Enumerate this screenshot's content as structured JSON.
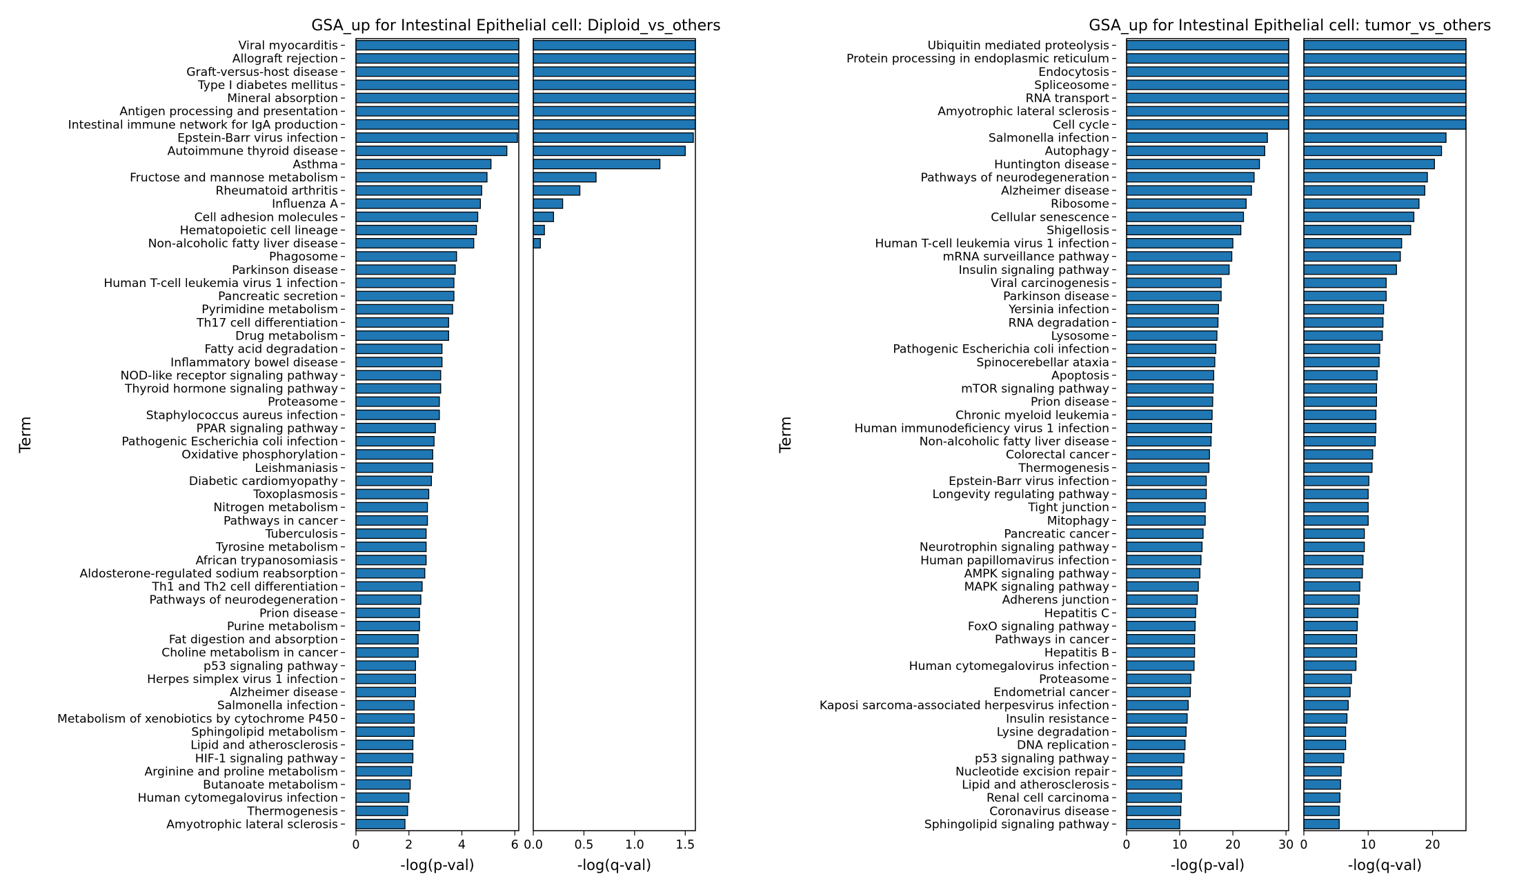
{
  "chart_data": [
    {
      "type": "bar",
      "orientation": "horizontal",
      "title": "GSA_up for Intestinal Epithelial cell: Diploid_vs_others",
      "ylabel": "Term",
      "bar_color": "#1f77b4",
      "edge_color": "#000000",
      "categories": [
        "Viral myocarditis",
        "Allograft rejection",
        "Graft-versus-host disease",
        "Type I diabetes mellitus",
        "Mineral absorption",
        "Antigen processing and presentation",
        "Intestinal immune network for IgA production",
        "Epstein-Barr virus infection",
        "Autoimmune thyroid disease",
        "Asthma",
        "Fructose and mannose metabolism",
        "Rheumatoid arthritis",
        "Influenza A",
        "Cell adhesion molecules",
        "Hematopoietic cell lineage",
        "Non-alcoholic fatty liver disease",
        "Phagosome",
        "Parkinson disease",
        "Human T-cell leukemia virus 1 infection",
        "Pancreatic secretion",
        "Pyrimidine metabolism",
        "Th17 cell differentiation",
        "Drug metabolism",
        "Fatty acid degradation",
        "Inflammatory bowel disease",
        "NOD-like receptor signaling pathway",
        "Thyroid hormone signaling pathway",
        "Proteasome",
        "Staphylococcus aureus infection",
        "PPAR signaling pathway",
        "Pathogenic Escherichia coli infection",
        "Oxidative phosphorylation",
        "Leishmaniasis",
        "Diabetic cardiomyopathy",
        "Toxoplasmosis",
        "Nitrogen metabolism",
        "Pathways in cancer",
        "Tuberculosis",
        "Tyrosine metabolism",
        "African trypanosomiasis",
        "Aldosterone-regulated sodium reabsorption",
        "Th1 and Th2 cell differentiation",
        "Pathways of neurodegeneration",
        "Prion disease",
        "Purine metabolism",
        "Fat digestion and absorption",
        "Choline metabolism in cancer",
        "p53 signaling pathway",
        "Herpes simplex virus 1 infection",
        "Alzheimer disease",
        "Salmonella infection",
        "Metabolism of xenobiotics by cytochrome P450",
        "Sphingolipid metabolism",
        "Lipid and atherosclerosis",
        "HIF-1 signaling pathway",
        "Arginine and proline metabolism",
        "Butanoate metabolism",
        "Human cytomegalovirus infection",
        "Thermogenesis",
        "Amyotrophic lateral sclerosis"
      ],
      "panels": [
        {
          "xlabel": "-log(p-val)",
          "xlim": [
            0,
            6.15
          ],
          "ticks": [
            0,
            2,
            4,
            6
          ],
          "tick_labels": [
            "0",
            "2",
            "4",
            "6"
          ],
          "values": [
            6.15,
            6.15,
            6.15,
            6.15,
            6.15,
            6.15,
            6.15,
            6.1,
            5.7,
            5.1,
            4.95,
            4.75,
            4.7,
            4.6,
            4.55,
            4.45,
            3.8,
            3.75,
            3.7,
            3.7,
            3.65,
            3.5,
            3.5,
            3.25,
            3.25,
            3.2,
            3.2,
            3.15,
            3.15,
            3.0,
            2.95,
            2.9,
            2.9,
            2.85,
            2.75,
            2.7,
            2.7,
            2.65,
            2.65,
            2.65,
            2.6,
            2.5,
            2.45,
            2.4,
            2.4,
            2.35,
            2.35,
            2.25,
            2.25,
            2.25,
            2.2,
            2.2,
            2.2,
            2.15,
            2.15,
            2.1,
            2.05,
            2.0,
            1.95,
            1.85
          ]
        },
        {
          "xlabel": "-log(q-val)",
          "xlim": [
            0,
            1.6
          ],
          "ticks": [
            0,
            0.5,
            1.0,
            1.5
          ],
          "tick_labels": [
            "0.0",
            "0.5",
            "1.0",
            "1.5"
          ],
          "values": [
            1.6,
            1.6,
            1.6,
            1.6,
            1.6,
            1.6,
            1.6,
            1.58,
            1.5,
            1.25,
            0.62,
            0.46,
            0.29,
            0.2,
            0.11,
            0.07,
            0,
            0,
            0,
            0,
            0,
            0,
            0,
            0,
            0,
            0,
            0,
            0,
            0,
            0,
            0,
            0,
            0,
            0,
            0,
            0,
            0,
            0,
            0,
            0,
            0,
            0,
            0,
            0,
            0,
            0,
            0,
            0,
            0,
            0,
            0,
            0,
            0,
            0,
            0,
            0,
            0,
            0,
            0,
            0
          ]
        }
      ]
    },
    {
      "type": "bar",
      "orientation": "horizontal",
      "title": "GSA_up for Intestinal Epithelial cell: tumor_vs_others",
      "ylabel": "Term",
      "bar_color": "#1f77b4",
      "edge_color": "#000000",
      "categories": [
        "Ubiquitin mediated proteolysis",
        "Protein processing in endoplasmic reticulum",
        "Endocytosis",
        "Spliceosome",
        "RNA transport",
        "Amyotrophic lateral sclerosis",
        "Cell cycle",
        "Salmonella infection",
        "Autophagy",
        "Huntington disease",
        "Pathways of neurodegeneration",
        "Alzheimer disease",
        "Ribosome",
        "Cellular senescence",
        "Shigellosis",
        "Human T-cell leukemia virus 1 infection",
        "mRNA surveillance pathway",
        "Insulin signaling pathway",
        "Viral carcinogenesis",
        "Parkinson disease",
        "Yersinia infection",
        "RNA degradation",
        "Lysosome",
        "Pathogenic Escherichia coli infection",
        "Spinocerebellar ataxia",
        "Apoptosis",
        "mTOR signaling pathway",
        "Prion disease",
        "Chronic myeloid leukemia",
        "Human immunodeficiency virus 1 infection",
        "Non-alcoholic fatty liver disease",
        "Colorectal cancer",
        "Thermogenesis",
        "Epstein-Barr virus infection",
        "Longevity regulating pathway",
        "Tight junction",
        "Mitophagy",
        "Pancreatic cancer",
        "Neurotrophin signaling pathway",
        "Human papillomavirus infection",
        "AMPK signaling pathway",
        "MAPK signaling pathway",
        "Adherens junction",
        "Hepatitis C",
        "FoxO signaling pathway",
        "Pathways in cancer",
        "Hepatitis B",
        "Human cytomegalovirus infection",
        "Proteasome",
        "Endometrial cancer",
        "Kaposi sarcoma-associated herpesvirus infection",
        "Insulin resistance",
        "Lysine degradation",
        "DNA replication",
        "p53 signaling pathway",
        "Nucleotide excision repair",
        "Lipid and atherosclerosis",
        "Renal cell carcinoma",
        "Coronavirus disease",
        "Sphingolipid signaling pathway"
      ],
      "panels": [
        {
          "xlabel": "-log(p-val)",
          "xlim": [
            0,
            30.5
          ],
          "ticks": [
            0,
            10,
            20,
            30
          ],
          "tick_labels": [
            "0",
            "10",
            "20",
            "30"
          ],
          "values": [
            30.5,
            30.5,
            30.5,
            30.5,
            30.5,
            30.5,
            30.5,
            26.5,
            26.0,
            25.0,
            24.0,
            23.5,
            22.5,
            22.0,
            21.5,
            20.0,
            19.8,
            19.3,
            17.8,
            17.8,
            17.3,
            17.2,
            17.0,
            16.8,
            16.6,
            16.4,
            16.3,
            16.2,
            16.1,
            16.0,
            15.9,
            15.6,
            15.5,
            15.0,
            15.0,
            14.8,
            14.8,
            14.4,
            14.2,
            14.0,
            13.8,
            13.5,
            13.3,
            13.0,
            12.9,
            12.8,
            12.8,
            12.7,
            12.1,
            12.0,
            11.6,
            11.4,
            11.2,
            11.0,
            10.8,
            10.4,
            10.4,
            10.3,
            10.2,
            10.0
          ]
        },
        {
          "xlabel": "-log(q-val)",
          "xlim": [
            0,
            25.2
          ],
          "ticks": [
            0,
            10,
            20
          ],
          "tick_labels": [
            "0",
            "10",
            "20"
          ],
          "values": [
            25.2,
            25.2,
            25.2,
            25.2,
            25.2,
            25.2,
            25.2,
            22.1,
            21.4,
            20.3,
            19.2,
            18.8,
            17.9,
            17.1,
            16.6,
            15.2,
            15.0,
            14.4,
            12.8,
            12.8,
            12.4,
            12.3,
            12.2,
            11.8,
            11.7,
            11.4,
            11.3,
            11.3,
            11.2,
            11.2,
            11.1,
            10.7,
            10.6,
            10.1,
            10.0,
            10.0,
            10.0,
            9.4,
            9.4,
            9.2,
            9.1,
            8.7,
            8.6,
            8.4,
            8.3,
            8.2,
            8.2,
            8.1,
            7.4,
            7.2,
            6.9,
            6.7,
            6.5,
            6.5,
            6.2,
            5.8,
            5.7,
            5.6,
            5.5,
            5.5
          ]
        }
      ]
    }
  ]
}
